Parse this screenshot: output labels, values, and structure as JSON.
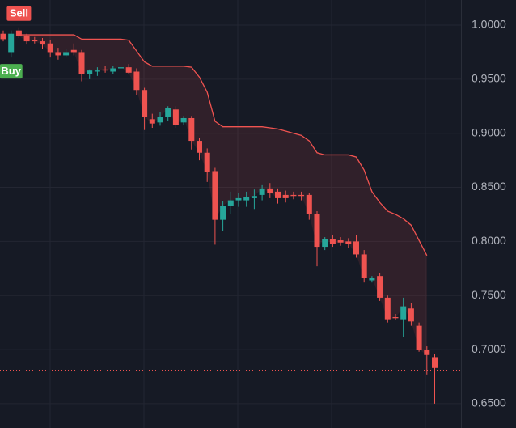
{
  "chart_data": {
    "type": "candlestick",
    "up_color": "#26a69a",
    "down_color": "#ef5350",
    "band_color": "#ef5350",
    "ylim": [
      0.6275,
      1.0232
    ],
    "yticks": [
      {
        "value": 1.0,
        "label": "1.0000"
      },
      {
        "value": 0.95,
        "label": "0.9500"
      },
      {
        "value": 0.9,
        "label": "0.9000"
      },
      {
        "value": 0.85,
        "label": "0.8500"
      },
      {
        "value": 0.8,
        "label": "0.8000"
      },
      {
        "value": 0.75,
        "label": "0.7500"
      },
      {
        "value": 0.7,
        "label": "0.7000"
      },
      {
        "value": 0.65,
        "label": "0.6500"
      }
    ],
    "grid": true,
    "price_line": 0.681,
    "annotations": [
      {
        "text": "Sell",
        "index": 2,
        "kind": "sell"
      },
      {
        "text": "Buy",
        "index": 1,
        "kind": "buy"
      }
    ],
    "open": [
      0.992,
      0.975,
      0.995,
      0.99,
      0.986,
      0.985,
      0.983,
      0.975,
      0.972,
      0.977,
      0.975,
      0.955,
      0.957,
      0.959,
      0.957,
      0.96,
      0.961,
      0.957,
      0.94,
      0.913,
      0.91,
      0.915,
      0.922,
      0.91,
      0.914,
      0.893,
      0.882,
      0.865,
      0.82,
      0.833,
      0.838,
      0.838,
      0.84,
      0.843,
      0.849,
      0.846,
      0.843,
      0.843,
      0.843,
      0.843,
      0.825,
      0.795,
      0.802,
      0.801,
      0.8,
      0.8,
      0.788,
      0.764,
      0.768,
      0.748,
      0.73,
      0.728,
      0.738,
      0.722,
      0.7,
      0.693
    ],
    "high": [
      0.995,
      0.995,
      0.998,
      0.992,
      0.989,
      0.988,
      0.986,
      0.979,
      0.978,
      0.983,
      0.977,
      0.959,
      0.961,
      0.962,
      0.962,
      0.963,
      0.964,
      0.96,
      0.942,
      0.918,
      0.92,
      0.925,
      0.925,
      0.916,
      0.916,
      0.896,
      0.886,
      0.868,
      0.837,
      0.846,
      0.845,
      0.846,
      0.848,
      0.852,
      0.854,
      0.849,
      0.847,
      0.846,
      0.846,
      0.845,
      0.828,
      0.804,
      0.806,
      0.804,
      0.803,
      0.806,
      0.792,
      0.768,
      0.771,
      0.75,
      0.733,
      0.748,
      0.743,
      0.725,
      0.703,
      0.696
    ],
    "low": [
      0.985,
      0.97,
      0.988,
      0.982,
      0.983,
      0.978,
      0.97,
      0.968,
      0.97,
      0.972,
      0.948,
      0.95,
      0.953,
      0.956,
      0.955,
      0.957,
      0.955,
      0.935,
      0.903,
      0.905,
      0.907,
      0.911,
      0.905,
      0.908,
      0.885,
      0.875,
      0.855,
      0.797,
      0.81,
      0.825,
      0.832,
      0.832,
      0.83,
      0.838,
      0.84,
      0.835,
      0.836,
      0.839,
      0.838,
      0.82,
      0.777,
      0.792,
      0.795,
      0.796,
      0.794,
      0.785,
      0.762,
      0.762,
      0.745,
      0.725,
      0.727,
      0.712,
      0.722,
      0.698,
      0.677,
      0.65
    ],
    "close": [
      0.987,
      0.992,
      0.99,
      0.985,
      0.985,
      0.982,
      0.975,
      0.972,
      0.975,
      0.975,
      0.955,
      0.958,
      0.958,
      0.958,
      0.96,
      0.961,
      0.956,
      0.94,
      0.915,
      0.909,
      0.915,
      0.923,
      0.908,
      0.914,
      0.893,
      0.882,
      0.864,
      0.82,
      0.833,
      0.838,
      0.84,
      0.841,
      0.842,
      0.849,
      0.845,
      0.84,
      0.84,
      0.842,
      0.842,
      0.825,
      0.795,
      0.802,
      0.798,
      0.799,
      0.798,
      0.788,
      0.766,
      0.766,
      0.748,
      0.728,
      0.729,
      0.74,
      0.726,
      0.7,
      0.695,
      0.683
    ],
    "band_upper": [
      null,
      null,
      0.991,
      0.991,
      0.991,
      0.991,
      0.991,
      0.991,
      0.991,
      0.991,
      0.987,
      0.987,
      0.987,
      0.987,
      0.987,
      0.987,
      0.986,
      0.976,
      0.966,
      0.962,
      0.962,
      0.962,
      0.962,
      0.962,
      0.961,
      0.952,
      0.938,
      0.911,
      0.906,
      0.906,
      0.906,
      0.906,
      0.906,
      0.906,
      0.905,
      0.904,
      0.902,
      0.9,
      0.898,
      0.893,
      0.882,
      0.88,
      0.88,
      0.88,
      0.88,
      0.878,
      0.866,
      0.846,
      0.836,
      0.828,
      0.825,
      0.821,
      0.815,
      0.801,
      0.787,
      null
    ]
  }
}
